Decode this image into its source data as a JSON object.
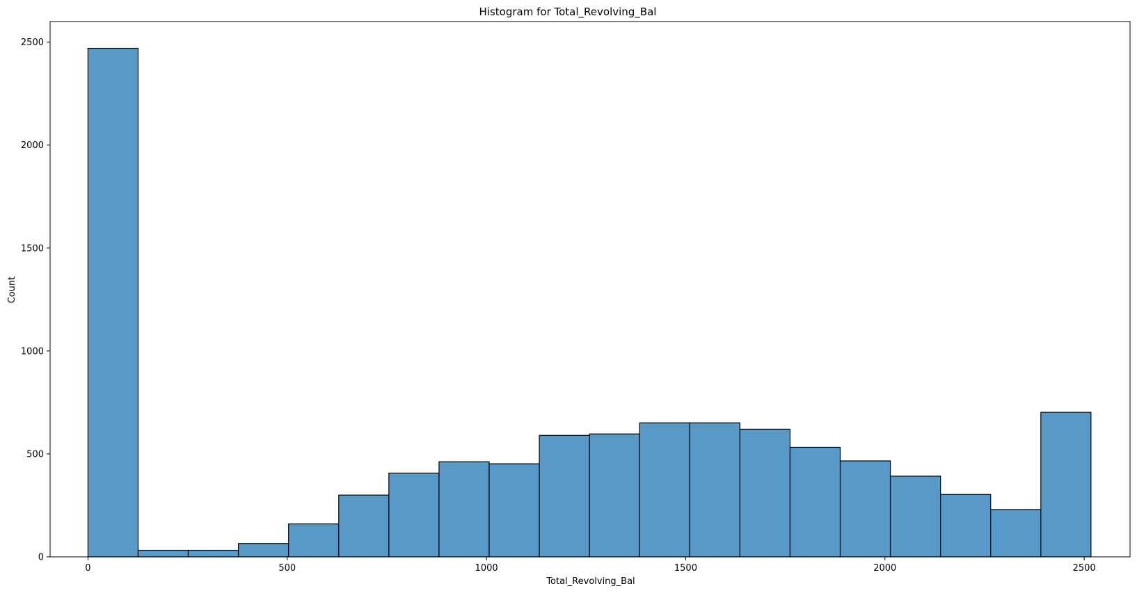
{
  "chart_data": {
    "type": "bar",
    "title": "Histogram for Total_Revolving_Bal",
    "xlabel": "Total_Revolving_Bal",
    "ylabel": "Count",
    "xlim": [
      -95,
      2615
    ],
    "ylim": [
      0,
      2600
    ],
    "xticks": [
      0,
      500,
      1000,
      1500,
      2000,
      2500
    ],
    "yticks": [
      0,
      500,
      1000,
      1500,
      2000,
      2500
    ],
    "bin_edges": [
      0,
      125.85,
      251.7,
      377.55,
      503.4,
      629.25,
      755.1,
      880.95,
      1006.8,
      1132.65,
      1258.5,
      1384.35,
      1510.2,
      1636.05,
      1761.9,
      1887.75,
      2013.6,
      2139.45,
      2265.3,
      2391.15,
      2517
    ],
    "counts": [
      2470,
      32,
      32,
      65,
      160,
      300,
      407,
      462,
      452,
      590,
      597,
      651,
      651,
      620,
      532,
      466,
      392,
      303,
      230,
      702
    ],
    "bar_color": "#5799c7",
    "edge_color": "#000000",
    "grid": false
  }
}
